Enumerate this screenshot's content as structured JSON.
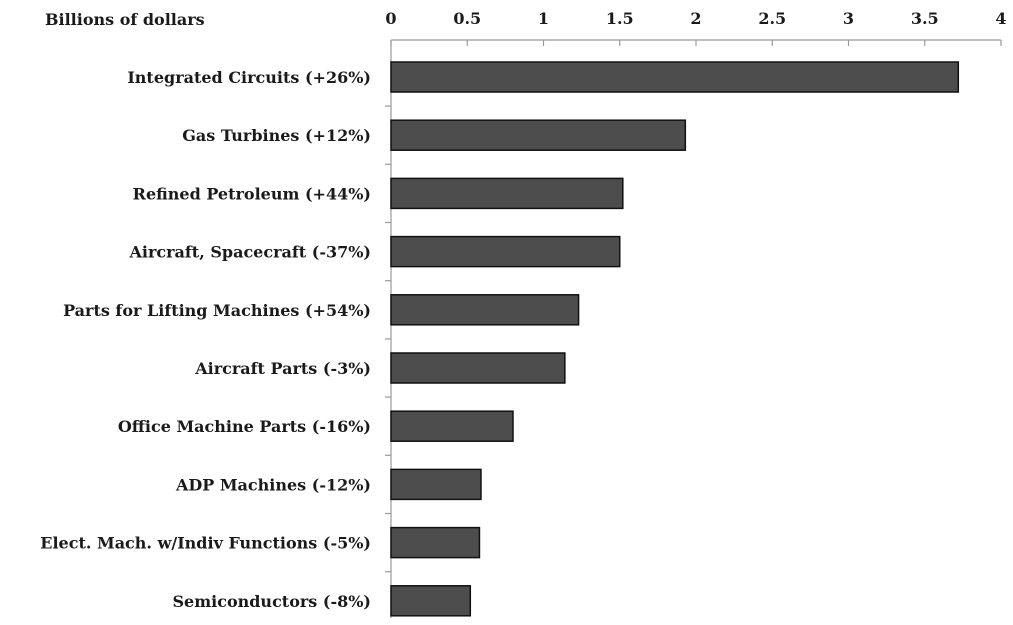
{
  "chart_data": {
    "type": "bar",
    "orientation": "horizontal",
    "unit_label": "Billions of dollars",
    "categories": [
      "Integrated Circuits (+26%)",
      "Gas Turbines (+12%)",
      "Refined Petroleum (+44%)",
      "Aircraft, Spacecraft (-37%)",
      "Parts for Lifting Machines (+54%)",
      "Aircraft Parts (-3%)",
      "Office Machine Parts (-16%)",
      "ADP Machines (-12%)",
      "Elect. Mach. w/Indiv Functions (-5%)",
      "Semiconductors (-8%)"
    ],
    "values": [
      3.72,
      1.93,
      1.52,
      1.5,
      1.23,
      1.14,
      0.8,
      0.59,
      0.58,
      0.52
    ],
    "xlim": [
      0,
      4
    ],
    "ticks": [
      0,
      0.5,
      1,
      1.5,
      2,
      2.5,
      3,
      3.5,
      4
    ],
    "tick_labels": [
      "0",
      "0.5",
      "1",
      "1.5",
      "2",
      "2.5",
      "3",
      "3.5",
      "4"
    ],
    "axis_position": "top",
    "grid": false,
    "bar_color": "#4d4d4d",
    "bar_edge_color": "#111111"
  }
}
